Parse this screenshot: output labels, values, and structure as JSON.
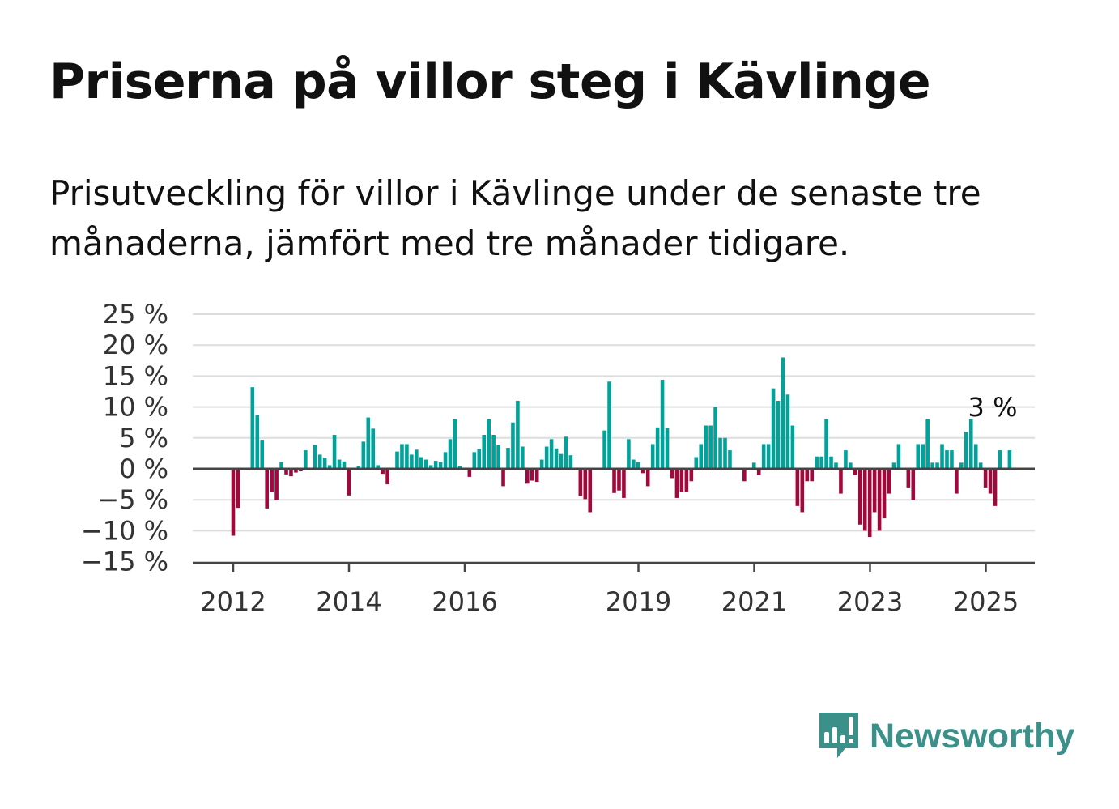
{
  "title": "Priserna på villor steg i Kävlinge",
  "subtitle": "Prisutveckling för villor i Kävlinge under de senaste tre månaderna, jämfört med tre månader tidigare.",
  "brand": {
    "name": "Newsworthy",
    "icon": "newsworthy-logo-icon",
    "color": "#3b9189"
  },
  "colors": {
    "positive": "#00a29a",
    "negative": "#a0093c",
    "grid": "#dddddd",
    "zero": "#444444"
  },
  "chart_data": {
    "type": "bar",
    "ylim": [
      -15,
      25
    ],
    "y_ticks": [
      25,
      20,
      15,
      10,
      5,
      0,
      -5,
      -10,
      -15
    ],
    "y_tick_labels": [
      "25 %",
      "20 %",
      "15 %",
      "10 %",
      "5 %",
      "0 %",
      "−5 %",
      "−10 %",
      "−15 %"
    ],
    "x_ticks": [
      2012,
      2014,
      2016,
      2019,
      2021,
      2023,
      2025
    ],
    "x_tick_labels": [
      "2012",
      "2014",
      "2016",
      "2019",
      "2021",
      "2023",
      "2025"
    ],
    "x_start": 2012.0,
    "x_step": 0.0833,
    "annotation": {
      "label": "3 %",
      "value": 3
    },
    "values": [
      -10.8,
      -6.3,
      0,
      0,
      13.2,
      8.7,
      4.7,
      -6.4,
      -3.8,
      -5.1,
      1.1,
      -0.9,
      -1.2,
      -0.6,
      -0.4,
      3.0,
      0,
      3.9,
      2.3,
      1.8,
      0.6,
      5.5,
      1.5,
      1.2,
      -4.3,
      0,
      0.4,
      4.4,
      8.3,
      6.5,
      0.6,
      -0.8,
      -2.5,
      0,
      2.8,
      4.0,
      4.0,
      2.3,
      3.1,
      1.9,
      1.5,
      0.6,
      1.3,
      1.1,
      2.7,
      4.8,
      8.0,
      0.4,
      0,
      -1.3,
      2.7,
      3.2,
      5.5,
      8.0,
      5.5,
      3.8,
      -2.8,
      3.4,
      7.5,
      11.0,
      3.6,
      -2.4,
      -1.9,
      -2.1,
      1.5,
      3.6,
      4.8,
      3.3,
      2.4,
      5.2,
      2.2,
      0,
      -4.4,
      -4.9,
      -7.0,
      0,
      0,
      6.2,
      14.1,
      -3.9,
      -3.5,
      -4.7,
      4.8,
      1.5,
      1.1,
      -0.7,
      -2.8,
      4.0,
      6.7,
      14.4,
      6.6,
      -1.5,
      -4.7,
      -3.7,
      -3.7,
      -2.0,
      1.9,
      4.0,
      7.0,
      7.0,
      10.0,
      5.0,
      5.0,
      3.0,
      0,
      0,
      -2.0,
      0,
      1.0,
      -1.0,
      4.0,
      4.0,
      13.0,
      11.0,
      18.0,
      12.0,
      7.0,
      -6.0,
      -7.0,
      -2.0,
      -2.0,
      2.0,
      2.0,
      8.0,
      2.0,
      1.0,
      -4.0,
      3.0,
      1.0,
      -1.0,
      -9.0,
      -10.0,
      -11.0,
      -7.0,
      -10.0,
      -8.0,
      -4.0,
      1.0,
      4.0,
      0,
      -3.0,
      -5.0,
      4.0,
      4.0,
      8.0,
      1.0,
      1.0,
      4.0,
      3.0,
      3.0,
      -4.0,
      1.0,
      6.0,
      8.0,
      4.0,
      1.0,
      -3.0,
      -4.0,
      -6.0,
      3.0,
      0,
      3.0
    ]
  }
}
